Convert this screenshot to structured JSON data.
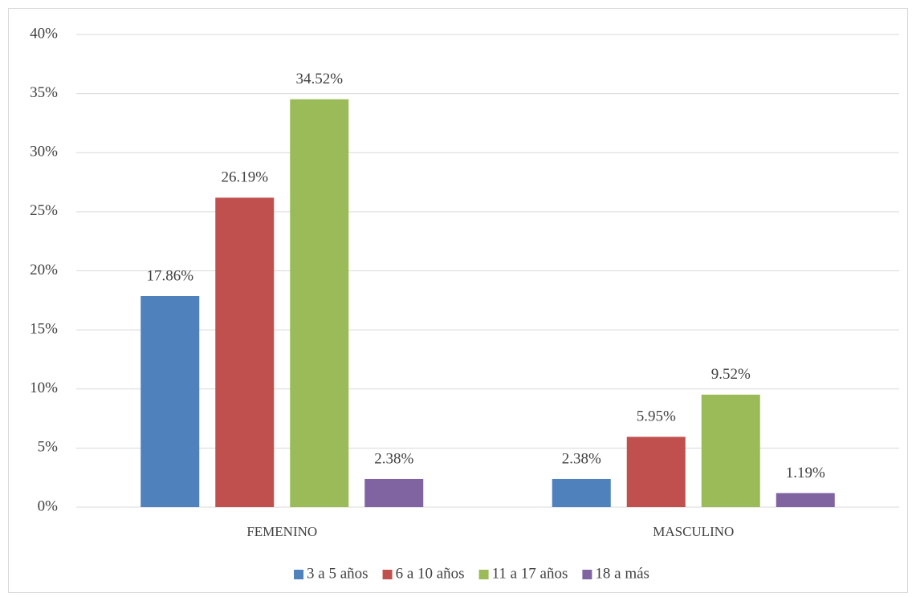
{
  "chart_data": {
    "type": "bar",
    "categories": [
      "FEMENINO",
      "MASCULINO"
    ],
    "series": [
      {
        "name": "3 a 5 años",
        "color": "#4f81bd",
        "values": [
          17.86,
          2.38
        ],
        "value_labels": [
          "17.86%",
          "2.38%"
        ]
      },
      {
        "name": "6 a 10 años",
        "color": "#c0504d",
        "values": [
          26.19,
          5.95
        ],
        "value_labels": [
          "26.19%",
          "5.95%"
        ]
      },
      {
        "name": "11 a 17 años",
        "color": "#9bbb59",
        "values": [
          34.52,
          9.52
        ],
        "value_labels": [
          "34.52%",
          "9.52%"
        ]
      },
      {
        "name": "18 a más",
        "color": "#8064a2",
        "values": [
          2.38,
          1.19
        ],
        "value_labels": [
          "2.38%",
          "1.19%"
        ]
      }
    ],
    "ylim": [
      0,
      40
    ],
    "yticks": [
      {
        "value": 0,
        "label": "0%"
      },
      {
        "value": 5,
        "label": "5%"
      },
      {
        "value": 10,
        "label": "10%"
      },
      {
        "value": 15,
        "label": "15%"
      },
      {
        "value": 20,
        "label": "20%"
      },
      {
        "value": 25,
        "label": "25%"
      },
      {
        "value": 30,
        "label": "30%"
      },
      {
        "value": 35,
        "label": "35%"
      },
      {
        "value": 40,
        "label": "40%"
      }
    ],
    "grid": true,
    "legend": "bottom"
  }
}
